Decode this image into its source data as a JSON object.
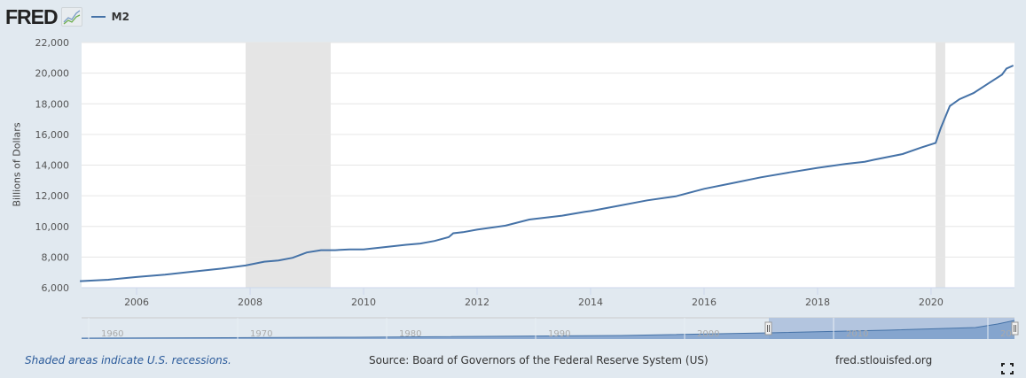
{
  "header": {
    "logo": "FRED",
    "logo_icon": "fred-chart-icon",
    "series_label": "M2",
    "series_color": "#4572a7"
  },
  "footer": {
    "recession_note": "Shaded areas indicate U.S. recessions.",
    "source": "Source: Board of Governors of the Federal Reserve System (US)",
    "site": "fred.stlouisfed.org",
    "fullscreen_icon": "fullscreen-icon"
  },
  "navigator": {
    "ticks": [
      "1960",
      "1970",
      "1980",
      "1990",
      "2000",
      "2010",
      "20."
    ]
  },
  "chart_data": {
    "type": "line",
    "title": "",
    "legend": [
      "M2"
    ],
    "xlabel": "",
    "ylabel": "Billions of Dollars",
    "ylim": [
      6000,
      22000
    ],
    "xlim": [
      2005.0,
      2021.5
    ],
    "yticks": [
      "6,000",
      "8,000",
      "10,000",
      "12,000",
      "14,000",
      "16,000",
      "18,000",
      "20,000",
      "22,000"
    ],
    "xticks": [
      "2006",
      "2008",
      "2010",
      "2012",
      "2014",
      "2016",
      "2018",
      "2020"
    ],
    "grid": true,
    "recessions": [
      [
        2007.92,
        2009.42
      ],
      [
        2020.08,
        2020.25
      ]
    ],
    "series": [
      {
        "name": "M2",
        "color": "#4572a7",
        "x": [
          2005.0,
          2005.5,
          2006.0,
          2006.5,
          2007.0,
          2007.5,
          2007.92,
          2008.25,
          2008.5,
          2008.75,
          2009.0,
          2009.25,
          2009.5,
          2009.75,
          2010.0,
          2010.25,
          2010.5,
          2010.75,
          2011.0,
          2011.25,
          2011.5,
          2011.58,
          2011.75,
          2012.0,
          2012.5,
          2012.92,
          2013.0,
          2013.5,
          2013.9,
          2014.0,
          2014.5,
          2015.0,
          2015.5,
          2016.0,
          2016.5,
          2017.0,
          2017.5,
          2018.0,
          2018.5,
          2018.83,
          2019.0,
          2019.5,
          2019.83,
          2020.08,
          2020.17,
          2020.33,
          2020.5,
          2020.75,
          2021.0,
          2021.25,
          2021.33,
          2021.45
        ],
        "values": [
          6430,
          6520,
          6700,
          6850,
          7050,
          7250,
          7450,
          7700,
          7780,
          7950,
          8300,
          8450,
          8450,
          8500,
          8500,
          8600,
          8700,
          8800,
          8880,
          9050,
          9300,
          9550,
          9620,
          9790,
          10050,
          10450,
          10480,
          10700,
          10950,
          11000,
          11350,
          11700,
          11960,
          12450,
          12820,
          13200,
          13520,
          13820,
          14080,
          14220,
          14350,
          14720,
          15150,
          15450,
          16400,
          17850,
          18300,
          18700,
          19300,
          19900,
          20300,
          20500
        ]
      }
    ]
  }
}
